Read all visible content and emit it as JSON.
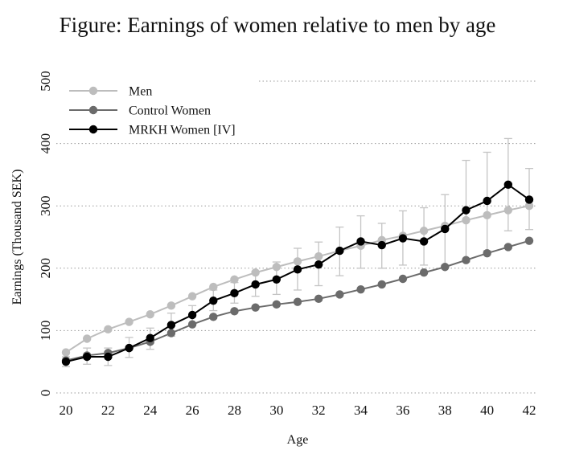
{
  "chart_data": {
    "type": "line",
    "title": "Figure: Earnings of women relative to men by age",
    "xlabel": "Age",
    "ylabel": "Earnings (Thousand SEK)",
    "xlim": [
      20,
      42
    ],
    "ylim": [
      0,
      500
    ],
    "xticks": [
      20,
      22,
      24,
      26,
      28,
      30,
      32,
      34,
      36,
      38,
      40,
      42
    ],
    "yticks": [
      0,
      100,
      200,
      300,
      400,
      500
    ],
    "grid": "horizontal-dotted",
    "legend_position": "top-left",
    "x": [
      20,
      21,
      22,
      23,
      24,
      25,
      26,
      27,
      28,
      29,
      30,
      31,
      32,
      33,
      34,
      35,
      36,
      37,
      38,
      39,
      40,
      41,
      42
    ],
    "series": [
      {
        "name": "Men",
        "color": "#bdbdbd",
        "values": [
          65,
          87,
          102,
          114,
          126,
          140,
          155,
          170,
          182,
          193,
          202,
          211,
          219,
          228,
          236,
          245,
          252,
          260,
          268,
          277,
          285,
          293,
          300
        ],
        "error_lower": null,
        "error_upper": null
      },
      {
        "name": "Control Women",
        "color": "#6b6b6b",
        "values": [
          52,
          60,
          64,
          72,
          82,
          96,
          110,
          122,
          131,
          137,
          142,
          146,
          151,
          158,
          166,
          174,
          183,
          193,
          202,
          213,
          224,
          234,
          244
        ],
        "error_lower": null,
        "error_upper": null
      },
      {
        "name": "MRKH Women [IV]",
        "color": "#000000",
        "values": [
          50,
          58,
          58,
          72,
          88,
          109,
          125,
          148,
          160,
          174,
          182,
          198,
          206,
          228,
          243,
          237,
          248,
          243,
          263,
          293,
          308,
          334,
          310
        ],
        "error_lower": [
          42,
          46,
          44,
          57,
          70,
          91,
          110,
          132,
          144,
          155,
          158,
          165,
          172,
          188,
          200,
          200,
          205,
          205,
          205,
          210,
          228,
          260,
          262
        ],
        "error_upper": [
          58,
          72,
          72,
          89,
          104,
          128,
          140,
          165,
          177,
          195,
          210,
          232,
          242,
          266,
          284,
          272,
          292,
          297,
          318,
          373,
          386,
          408,
          360
        ]
      }
    ]
  }
}
